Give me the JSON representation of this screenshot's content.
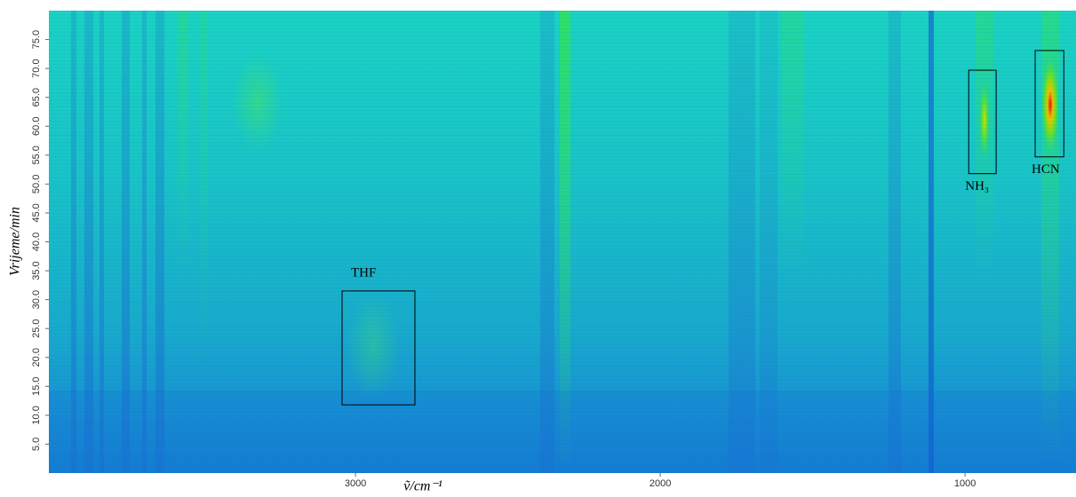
{
  "chart_data": {
    "type": "heatmap",
    "x_label": "ṽ/cm⁻¹",
    "y_label": "Vrijeme/min",
    "xlim": [
      4006,
      636
    ],
    "ylim": [
      0,
      80
    ],
    "xticks": [
      3000,
      2000,
      1000
    ],
    "yticks": [
      {
        "value": 5,
        "label": "5.0"
      },
      {
        "value": 10,
        "label": "10.0"
      },
      {
        "value": 15,
        "label": "15.0"
      },
      {
        "value": 20,
        "label": "20.0"
      },
      {
        "value": 25,
        "label": "25.0"
      },
      {
        "value": 30,
        "label": "30.0"
      },
      {
        "value": 35,
        "label": "35.0"
      },
      {
        "value": 40,
        "label": "40.0"
      },
      {
        "value": 45,
        "label": "45.0"
      },
      {
        "value": 50,
        "label": "50.0"
      },
      {
        "value": 55,
        "label": "55.0"
      },
      {
        "value": 60,
        "label": "60.0"
      },
      {
        "value": 65,
        "label": "65.0"
      },
      {
        "value": 70,
        "label": "70.0"
      },
      {
        "value": 75,
        "label": "75.0"
      }
    ],
    "annotations": [
      {
        "text": "THF",
        "x": [
          3044,
          2805
        ],
        "y": [
          11.8,
          31.5
        ]
      },
      {
        "text": "NH₃",
        "x": [
          988,
          898
        ],
        "y": [
          51.8,
          69.7
        ]
      },
      {
        "text": "HCN",
        "x": [
          770,
          676
        ],
        "y": [
          54.7,
          73.1
        ]
      }
    ]
  }
}
